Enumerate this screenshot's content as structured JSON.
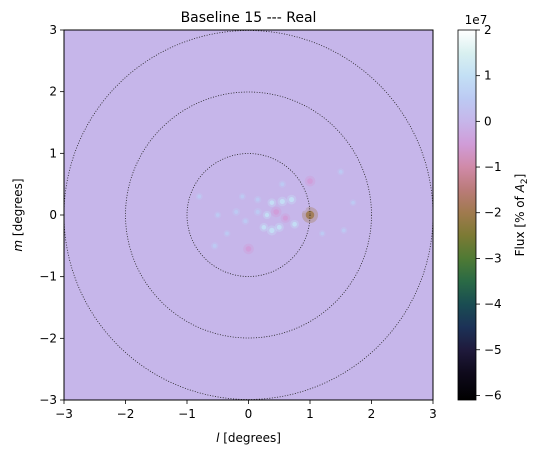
{
  "chart_data": {
    "type": "heatmap",
    "title": "Baseline 15 --- Real",
    "xlabel": {
      "italic": "l",
      "rest": " [degrees]"
    },
    "ylabel": {
      "italic": "m",
      "rest": " [degrees]"
    },
    "xlim": [
      -3,
      3
    ],
    "ylim": [
      -3,
      3
    ],
    "xticks": [
      -3,
      -2,
      -1,
      0,
      1,
      2,
      3
    ],
    "yticks": [
      -3,
      -2,
      -1,
      0,
      1,
      2,
      3
    ],
    "background_value": 0,
    "background_color": "#c6b6ea",
    "circle_radii_degrees": [
      1,
      2,
      3
    ],
    "sources": [
      {
        "l": 1.0,
        "m": 0.0,
        "flux": -22000000.0
      },
      {
        "l": 1.0,
        "m": 0.55,
        "flux": -10000000.0
      },
      {
        "l": 0.0,
        "m": -0.55,
        "flux": -10000000.0
      },
      {
        "l": 0.45,
        "m": 0.05,
        "flux": -10000000.0
      },
      {
        "l": 0.6,
        "m": -0.05,
        "flux": -8000000.0
      },
      {
        "l": 0.7,
        "m": 0.25,
        "flux": 8000000.0
      },
      {
        "l": 0.55,
        "m": 0.22,
        "flux": 8000000.0
      },
      {
        "l": 0.38,
        "m": 0.2,
        "flux": 6000000.0
      },
      {
        "l": 0.75,
        "m": -0.15,
        "flux": 6000000.0
      },
      {
        "l": 0.5,
        "m": -0.2,
        "flux": 7000000.0
      },
      {
        "l": 0.38,
        "m": -0.25,
        "flux": 9000000.0
      },
      {
        "l": 0.25,
        "m": -0.2,
        "flux": 6000000.0
      },
      {
        "l": 0.3,
        "m": 0.0,
        "flux": 5000000.0
      },
      {
        "l": 0.15,
        "m": 0.05,
        "flux": 4000000.0
      },
      {
        "l": -0.2,
        "m": 0.05,
        "flux": 4000000.0
      },
      {
        "l": 0.15,
        "m": 0.25,
        "flux": 3000000.0
      },
      {
        "l": 0.55,
        "m": 0.5,
        "flux": 3000000.0
      },
      {
        "l": -0.05,
        "m": -0.1,
        "flux": 3000000.0
      },
      {
        "l": -0.55,
        "m": -0.5,
        "flux": 3000000.0
      },
      {
        "l": -0.35,
        "m": -0.3,
        "flux": 2000000.0
      },
      {
        "l": -0.1,
        "m": 0.3,
        "flux": 2000000.0
      },
      {
        "l": 0.9,
        "m": 0.1,
        "flux": -5000000.0
      },
      {
        "l": 0.35,
        "m": 0.35,
        "flux": -4000000.0
      },
      {
        "l": 1.5,
        "m": 0.7,
        "flux": 2000000.0
      },
      {
        "l": 1.55,
        "m": -0.25,
        "flux": 2000000.0
      },
      {
        "l": -0.8,
        "m": 0.3,
        "flux": 2000000.0
      },
      {
        "l": 1.2,
        "m": -0.3,
        "flux": 1500000.0
      },
      {
        "l": 1.7,
        "m": 0.2,
        "flux": 1500000.0
      },
      {
        "l": -0.5,
        "m": 0.0,
        "flux": 2000000.0
      }
    ],
    "colorbar": {
      "label_prefix": "Flux [% of ",
      "label_symbol": "A",
      "label_subscript": "2",
      "label_suffix": "]",
      "exponent": "1e7",
      "range": [
        -6.1,
        2.0
      ],
      "ticks": [
        2,
        1,
        0,
        -1,
        -2,
        -3,
        -4,
        -5,
        -6
      ],
      "tick_labels": [
        "2",
        "1",
        "0",
        "−1",
        "−2",
        "−3",
        "−4",
        "−5",
        "−6"
      ],
      "colormap": "cubehelix",
      "gradient": [
        {
          "v": 2.0,
          "color": "#ffffff"
        },
        {
          "v": 1.5,
          "color": "#d9f0f0"
        },
        {
          "v": 1.0,
          "color": "#c3e0f5"
        },
        {
          "v": 0.5,
          "color": "#bccaf3"
        },
        {
          "v": 0.0,
          "color": "#c6b6ea"
        },
        {
          "v": -0.5,
          "color": "#d09cd8"
        },
        {
          "v": -1.0,
          "color": "#d08aa8"
        },
        {
          "v": -1.5,
          "color": "#ba7b79"
        },
        {
          "v": -2.0,
          "color": "#a07a4e"
        },
        {
          "v": -2.5,
          "color": "#7c7a34"
        },
        {
          "v": -3.0,
          "color": "#4f7a34"
        },
        {
          "v": -3.5,
          "color": "#2a6a45"
        },
        {
          "v": -4.0,
          "color": "#1a4d52"
        },
        {
          "v": -4.5,
          "color": "#1c3257"
        },
        {
          "v": -5.0,
          "color": "#1f1a3c"
        },
        {
          "v": -5.5,
          "color": "#0f0a1c"
        },
        {
          "v": -6.1,
          "color": "#000000"
        }
      ]
    }
  }
}
